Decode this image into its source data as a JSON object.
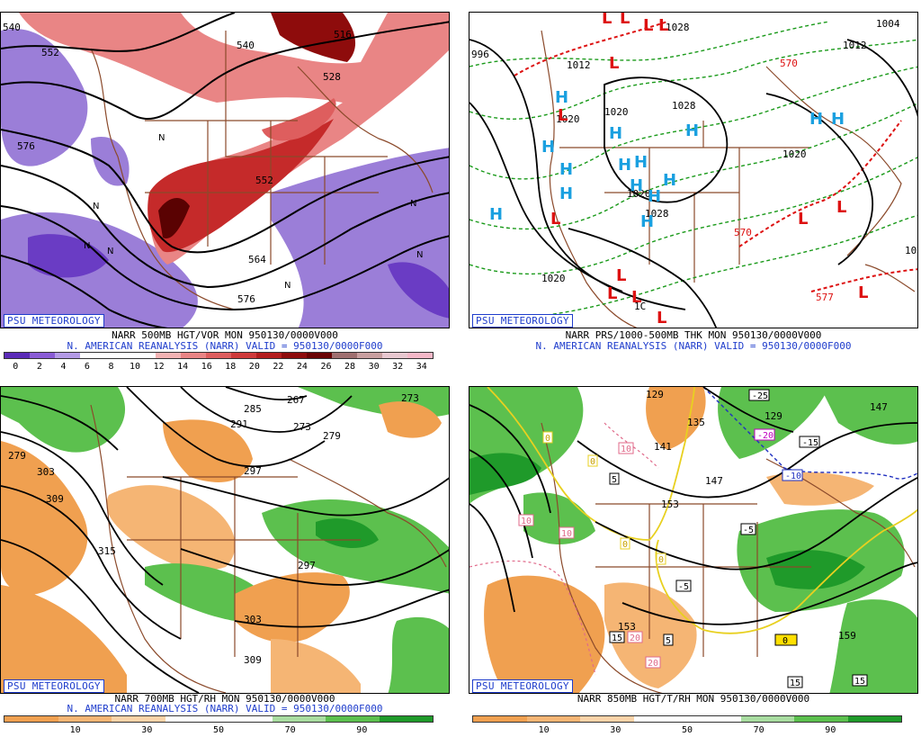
{
  "panels": [
    {
      "id": "p1",
      "badge": "PSU METEOROLOGY",
      "line1": "NARR 500MB HGT/VOR MON 950130/0000V000",
      "line2": "N. AMERICAN REANALYSIS (NARR) VALID = 950130/0000F000",
      "colorbar": {
        "colors": [
          "#5b2bb8",
          "#8a5cd6",
          "#b49be6",
          "#ffffff",
          "#ffffff",
          "#ffffff",
          "#f3b3b3",
          "#e98585",
          "#de5e5e",
          "#cf3a3a",
          "#b31d1d",
          "#8e0c0c",
          "#6a0303",
          "#a07070",
          "#c9a0a0",
          "#e8c8d0",
          "#f5b8c8"
        ],
        "ticks": [
          "0",
          "2",
          "4",
          "6",
          "8",
          "10",
          "12",
          "14",
          "16",
          "18",
          "20",
          "22",
          "24",
          "26",
          "28",
          "30",
          "32",
          "34"
        ]
      },
      "contour_labels": [
        "540",
        "552",
        "528",
        "516",
        "540",
        "576",
        "552",
        "564",
        "576"
      ],
      "symbols": [
        "N",
        "N",
        "N",
        "N",
        "N",
        "N",
        "N"
      ]
    },
    {
      "id": "p2",
      "badge": "PSU METEOROLOGY",
      "line1": "NARR PRS/1000-500MB THK MON 950130/0000V000",
      "line2": "N. AMERICAN REANALYSIS (NARR) VALID = 950130/0000F000",
      "contour_labels": [
        "996",
        "1012",
        "1020",
        "1020",
        "1028",
        "1020",
        "1028",
        "1020",
        "1004",
        "1012",
        "570",
        "570",
        "577",
        "1020",
        "1028",
        "10",
        "1C"
      ],
      "highs": [
        "H",
        "H",
        "H",
        "H",
        "H",
        "H",
        "H",
        "H",
        "H",
        "H",
        "H",
        "H",
        "H",
        "H",
        "H"
      ],
      "lows": [
        "L",
        "L",
        "L",
        "L",
        "L",
        "L",
        "L",
        "L",
        "L",
        "L",
        "L",
        "L",
        "L",
        "L"
      ]
    },
    {
      "id": "p3",
      "badge": "PSU METEOROLOGY",
      "line1": "NARR 700MB HGT/RH MON 950130/0000V000",
      "line2": "N. AMERICAN REANALYSIS (NARR) VALID = 950130/0000F000",
      "colorbar": {
        "colors": [
          "#f0a050",
          "#f5b574",
          "#fbd3a8",
          "#ffffff",
          "#ffffff",
          "#a8dca0",
          "#5cc04e",
          "#1f9a2a"
        ],
        "ticks": [
          "10",
          "30",
          "50",
          "70",
          "90"
        ]
      },
      "contour_labels": [
        "267",
        "273",
        "279",
        "285",
        "291",
        "297",
        "303",
        "309",
        "297",
        "303",
        "309",
        "315",
        "273",
        "279"
      ]
    },
    {
      "id": "p4",
      "badge": "PSU METEOROLOGY",
      "line1": "NARR 850MB HGT/T/RH MON 950130/0000V000",
      "line2": "",
      "colorbar": {
        "colors": [
          "#f0a050",
          "#f5b574",
          "#fbd3a8",
          "#ffffff",
          "#ffffff",
          "#a8dca0",
          "#5cc04e",
          "#1f9a2a"
        ],
        "ticks": [
          "10",
          "30",
          "50",
          "70",
          "90"
        ]
      },
      "contour_labels": [
        "129",
        "135",
        "141",
        "147",
        "153",
        "129",
        "153",
        "159",
        "147"
      ],
      "temp_labels": [
        "-25",
        "-20",
        "-15",
        "-10",
        "-5",
        "-5",
        "0",
        "0",
        "0",
        "0",
        "0",
        "5",
        "5",
        "10",
        "10",
        "10",
        "15",
        "15",
        "15",
        "20",
        "20"
      ]
    }
  ]
}
